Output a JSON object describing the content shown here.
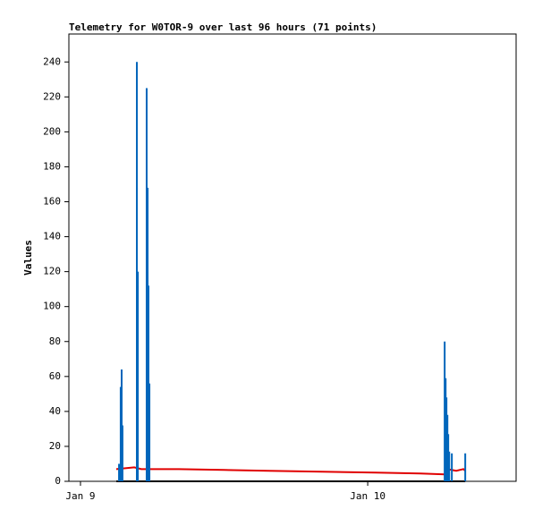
{
  "chart_data": {
    "type": "line",
    "title": "Telemetry for W0TOR-9 over last 96 hours (71 points)",
    "y_label": "Values",
    "xlim": [
      -0.97,
      36.4
    ],
    "xticks": [
      {
        "value": 0,
        "label": "Jan 9"
      },
      {
        "value": 24,
        "label": "Jan 10"
      }
    ],
    "ylim": [
      0,
      256
    ],
    "yticks": [
      0,
      20,
      40,
      60,
      80,
      100,
      120,
      140,
      160,
      180,
      200,
      220,
      240
    ],
    "grid": false,
    "series": [
      {
        "color": "#000000",
        "style": "line",
        "x": [
          2.99,
          32.15
        ],
        "values": [
          0,
          0
        ]
      },
      {
        "color": "#e00000",
        "style": "line",
        "x": [
          2.99,
          4.49,
          5.08,
          8.22,
          11.96,
          15.7,
          20.19,
          24.67,
          28.41,
          30.43,
          30.66,
          31.4,
          32.0,
          32.15
        ],
        "values": [
          7,
          8,
          7,
          7,
          6.5,
          6,
          5.5,
          5,
          4.5,
          4,
          7,
          6,
          7,
          6
        ]
      },
      {
        "color": "#0066bb",
        "style": "impulse",
        "x": [
          3.22,
          3.36,
          3.44,
          3.51,
          4.71,
          4.79,
          5.53,
          5.61,
          5.68,
          5.76,
          30.43,
          30.51,
          30.58,
          30.66,
          30.73,
          30.81,
          31.03,
          32.15
        ],
        "values": [
          10,
          54,
          64,
          32,
          240,
          120,
          225,
          168,
          112,
          56,
          80,
          59,
          48,
          38,
          27,
          17,
          16,
          16
        ]
      }
    ]
  }
}
